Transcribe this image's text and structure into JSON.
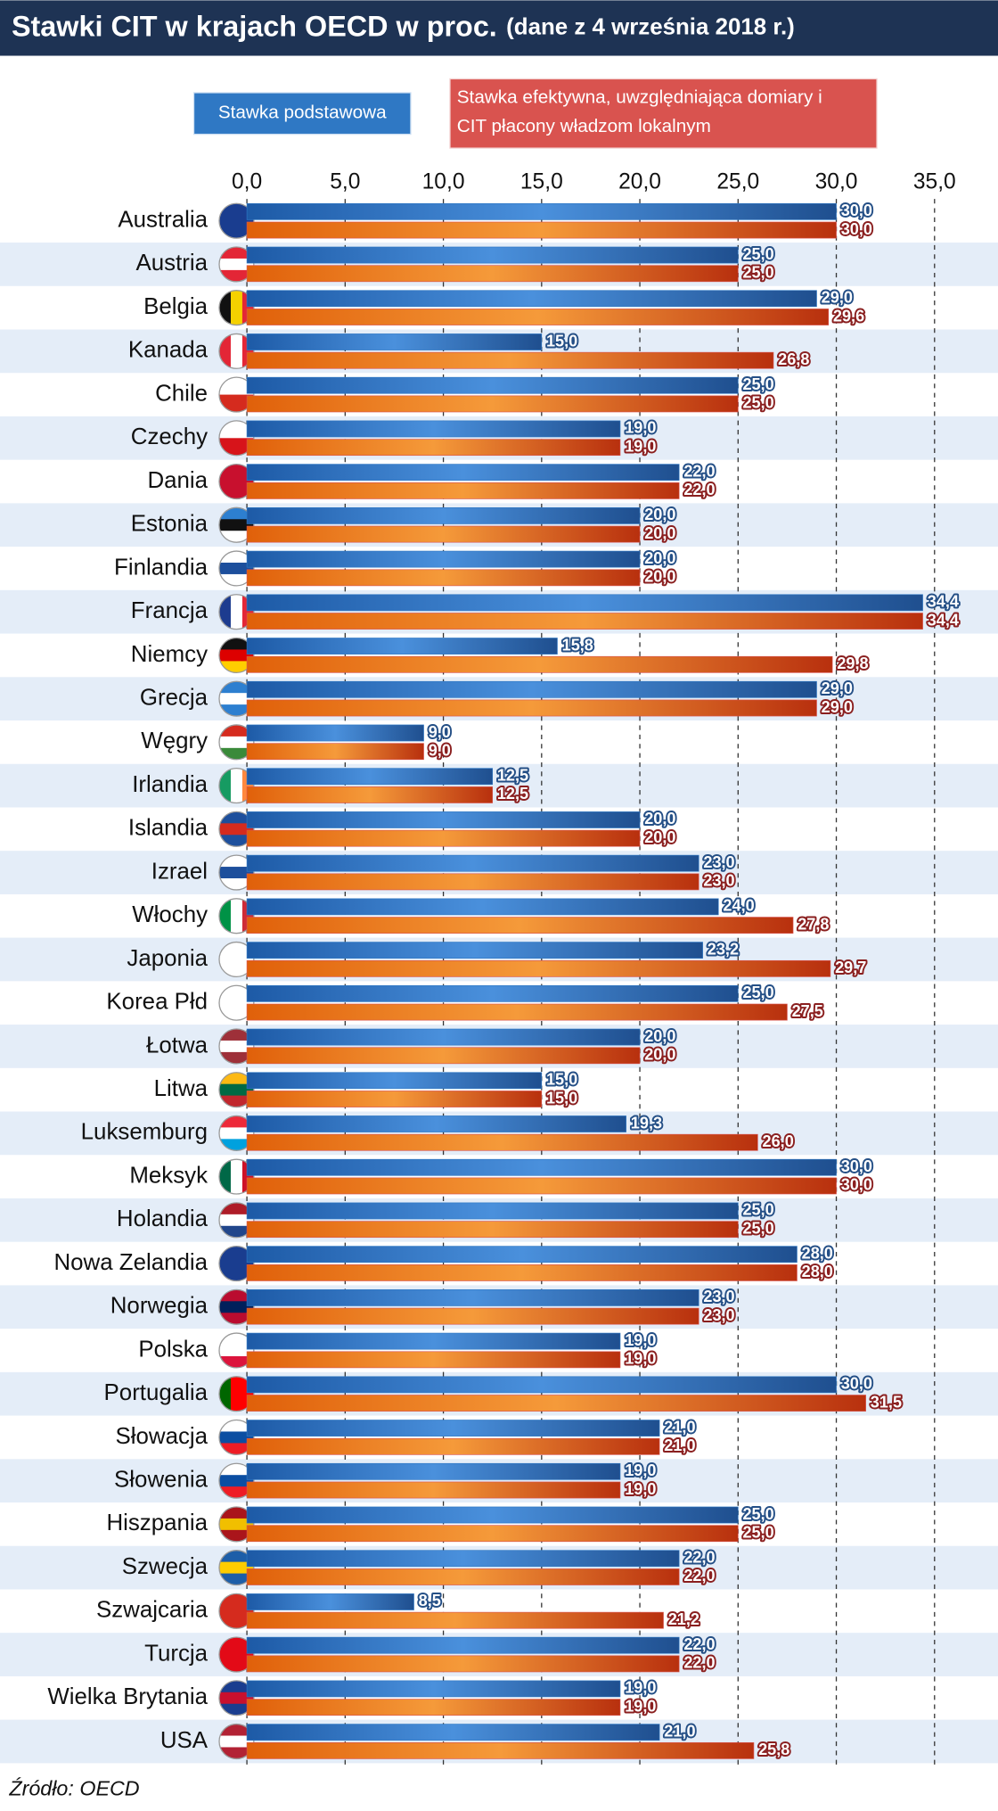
{
  "chart_data": {
    "type": "bar",
    "orientation": "horizontal",
    "title": "Stawki CIT w krajach OECD w proc.",
    "subtitle": "(dane z 4 września 2018 r.)",
    "categories": [
      "Australia",
      "Austria",
      "Belgia",
      "Kanada",
      "Chile",
      "Czechy",
      "Dania",
      "Estonia",
      "Finlandia",
      "Francja",
      "Niemcy",
      "Grecja",
      "Węgry",
      "Irlandia",
      "Islandia",
      "Izrael",
      "Włochy",
      "Japonia",
      "Korea Płd",
      "Łotwa",
      "Litwa",
      "Luksemburg",
      "Meksyk",
      "Holandia",
      "Nowa Zelandia",
      "Norwegia",
      "Polska",
      "Portugalia",
      "Słowacja",
      "Słowenia",
      "Hiszpania",
      "Szwecja",
      "Szwajcaria",
      "Turcja",
      "Wielka Brytania",
      "USA"
    ],
    "series": [
      {
        "name": "Stawka podstawowa",
        "color": "#2f78c4",
        "values": [
          30,
          25,
          29,
          15,
          25,
          19,
          22,
          20,
          20,
          34.4,
          15.8,
          29,
          9,
          12.5,
          20,
          23,
          24,
          23.2,
          25,
          20,
          15,
          19.3,
          30,
          25,
          28,
          23,
          19,
          30,
          21,
          19,
          25,
          22,
          8.5,
          22,
          19,
          21
        ],
        "value_labels": [
          "30,0",
          "25,0",
          "29,0",
          "15,0",
          "25,0",
          "19,0",
          "22,0",
          "20,0",
          "20,0",
          "34,4",
          "15,8",
          "29,0",
          "9,0",
          "12,5",
          "20,0",
          "23,0",
          "24,0",
          "23,2",
          "25,0",
          "20,0",
          "15,0",
          "19,3",
          "30,0",
          "25,0",
          "28,0",
          "23,0",
          "19,0",
          "30,0",
          "21,0",
          "19,0",
          "25,0",
          "22,0",
          "8,5",
          "22,0",
          "19,0",
          "21,0"
        ]
      },
      {
        "name": "Stawka efektywna, uwzględniająca domiary i CIT płacony władzom lokalnym",
        "color": "#d9534f",
        "values": [
          30,
          25,
          29.6,
          26.8,
          25,
          19,
          22,
          20,
          20,
          34.4,
          29.8,
          29,
          9,
          12.5,
          20,
          23,
          27.8,
          29.7,
          27.5,
          20,
          15,
          26,
          30,
          25,
          28,
          23,
          19,
          31.5,
          21,
          19,
          25,
          22,
          21.2,
          22,
          19,
          25.8
        ],
        "value_labels": [
          "30,0",
          "25,0",
          "29,6",
          "26,8",
          "25,0",
          "19,0",
          "22,0",
          "20,0",
          "20,0",
          "34,4",
          "29,8",
          "29,0",
          "9,0",
          "12,5",
          "20,0",
          "23,0",
          "27,8",
          "29,7",
          "27,5",
          "20,0",
          "15,0",
          "26,0",
          "30,0",
          "25,0",
          "28,0",
          "23,0",
          "19,0",
          "31,5",
          "21,0",
          "19,0",
          "25,0",
          "22,0",
          "21,2",
          "22,0",
          "19,0",
          "25,8"
        ]
      }
    ],
    "xlim": [
      0,
      35
    ],
    "xticks": [
      {
        "value": 0,
        "label": "0,0"
      },
      {
        "value": 5,
        "label": "5,0"
      },
      {
        "value": 10,
        "label": "10,0"
      },
      {
        "value": 15,
        "label": "15,0"
      },
      {
        "value": 20,
        "label": "20,0"
      },
      {
        "value": 25,
        "label": "25,0"
      },
      {
        "value": 30,
        "label": "30,0"
      },
      {
        "value": 35,
        "label": "35,0"
      }
    ],
    "grid": true,
    "source": "Źródło: OECD"
  }
}
